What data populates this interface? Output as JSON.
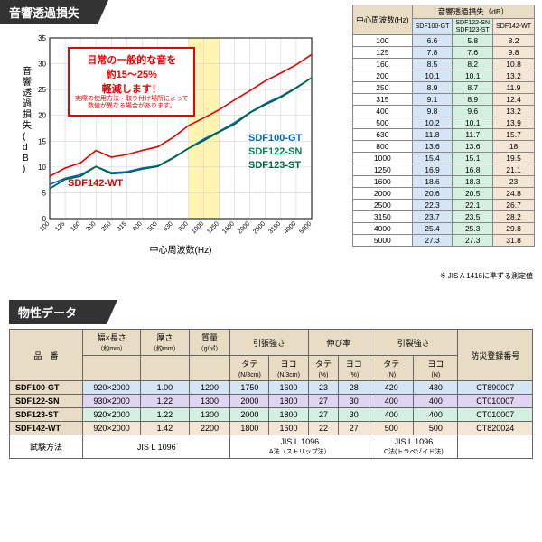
{
  "section1": {
    "title": "音響透過損失"
  },
  "callout": {
    "line1": "日常の一般的な音を",
    "line2": "約15～25%",
    "line3": "軽減します！",
    "line4": "実際の使用方法・取り付け場所によって",
    "line5": "数値が異なる場合があります。"
  },
  "chart": {
    "ylabel": "音響透過損失(dB)",
    "xlabel": "中心周波数(Hz)",
    "ylim": [
      0,
      35
    ],
    "yticks": [
      0,
      5,
      10,
      15,
      20,
      25,
      30,
      35
    ],
    "xticks": [
      "100",
      "125",
      "160",
      "200",
      "250",
      "315",
      "400",
      "500",
      "630",
      "800",
      "1000",
      "1250",
      "1600",
      "2000",
      "2500",
      "3150",
      "4000",
      "5000"
    ],
    "highlight_band": [
      9,
      11
    ],
    "series": [
      {
        "name": "SDF142-WT",
        "color": "#e00000",
        "label_pos": [
          60,
          165
        ],
        "y": [
          8.2,
          9.8,
          10.8,
          13.2,
          11.9,
          12.4,
          13.2,
          13.9,
          15.7,
          18,
          19.5,
          21.1,
          23,
          24.8,
          26.7,
          28.2,
          29.8,
          31.8
        ]
      },
      {
        "name": "SDF100-GT",
        "color": "#0066cc",
        "label_pos": [
          260,
          115
        ],
        "y": [
          6.6,
          7.8,
          8.5,
          10.1,
          8.9,
          9.1,
          9.8,
          10.2,
          11.8,
          13.6,
          15.4,
          16.9,
          18.6,
          20.6,
          22.3,
          23.7,
          25.4,
          27.3
        ]
      },
      {
        "name": "SDF122-SN",
        "color": "#008855",
        "label_pos": [
          260,
          130
        ],
        "y": [
          5.8,
          7.6,
          8.2,
          10.1,
          8.7,
          8.9,
          9.6,
          10.1,
          11.7,
          13.6,
          15.1,
          16.8,
          18.3,
          20.5,
          22.1,
          23.5,
          25.3,
          27.3
        ]
      },
      {
        "name": "SDF123-ST",
        "color": "#006644",
        "label_pos": [
          260,
          145
        ],
        "y": [
          5.8,
          7.6,
          8.2,
          10.1,
          8.7,
          8.9,
          9.6,
          10.1,
          11.7,
          13.6,
          15.1,
          16.8,
          18.3,
          20.5,
          22.1,
          23.5,
          25.3,
          27.3
        ]
      }
    ]
  },
  "tl_table": {
    "header_main": "音響透過損失（dB）",
    "header_freq": "中心周波数(Hz)",
    "cols": [
      "SDF100-GT",
      "SDF122-SN SDF123-ST",
      "SDF142-WT"
    ],
    "col_bg": [
      "#d5e5f5",
      "#d5f0e0",
      "#f5e5d5"
    ],
    "rows": [
      [
        "100",
        "6.6",
        "5.8",
        "8.2"
      ],
      [
        "125",
        "7.8",
        "7.6",
        "9.8"
      ],
      [
        "160",
        "8.5",
        "8.2",
        "10.8"
      ],
      [
        "200",
        "10.1",
        "10.1",
        "13.2"
      ],
      [
        "250",
        "8.9",
        "8.7",
        "11.9"
      ],
      [
        "315",
        "9.1",
        "8.9",
        "12.4"
      ],
      [
        "400",
        "9.8",
        "9.6",
        "13.2"
      ],
      [
        "500",
        "10.2",
        "10.1",
        "13.9"
      ],
      [
        "630",
        "11.8",
        "11.7",
        "15.7"
      ],
      [
        "800",
        "13.6",
        "13.6",
        "18"
      ],
      [
        "1000",
        "15.4",
        "15.1",
        "19.5"
      ],
      [
        "1250",
        "16.9",
        "16.8",
        "21.1"
      ],
      [
        "1600",
        "18.6",
        "18.3",
        "23"
      ],
      [
        "2000",
        "20.6",
        "20.5",
        "24.8"
      ],
      [
        "2500",
        "22.3",
        "22.1",
        "26.7"
      ],
      [
        "3150",
        "23.7",
        "23.5",
        "28.2"
      ],
      [
        "4000",
        "25.4",
        "25.3",
        "29.8"
      ],
      [
        "5000",
        "27.3",
        "27.3",
        "31.8"
      ]
    ],
    "note": "※ JIS A 1416に準ずる測定値"
  },
  "section2": {
    "title": "物性データ"
  },
  "props": {
    "headers": {
      "product": "品　番",
      "size": "幅×長さ",
      "thickness": "厚さ",
      "mass": "質量",
      "tensile": "引張強さ",
      "elongation": "伸び率",
      "tear": "引裂強さ",
      "reg": "防災登録番号",
      "size_u": "（約mm）",
      "th_u": "（約mm）",
      "mass_u": "（g/㎡）",
      "tate": "タテ",
      "yoko": "ヨコ",
      "n3": "(N/3cm)",
      "pct": "(%)",
      "n": "(N)",
      "test": "試験方法",
      "jis1": "JIS L 1096",
      "jis2": "JIS L 1096",
      "jis2s": "A法（ストリップ法）",
      "jis3": "JIS L 1096",
      "jis3s": "C法(トラペゾイド法)"
    },
    "rows": [
      {
        "bg": "#d5e5f5",
        "v": [
          "SDF100-GT",
          "920×2000",
          "1.00",
          "1200",
          "1750",
          "1600",
          "23",
          "28",
          "420",
          "430",
          "CT890007"
        ]
      },
      {
        "bg": "#e0d5f0",
        "v": [
          "SDF122-SN",
          "930×2000",
          "1.22",
          "1300",
          "2000",
          "1800",
          "27",
          "30",
          "400",
          "400",
          "CT010007"
        ]
      },
      {
        "bg": "#d5f0e0",
        "v": [
          "SDF123-ST",
          "920×2000",
          "1.22",
          "1300",
          "2000",
          "1800",
          "27",
          "30",
          "400",
          "400",
          "CT010007"
        ]
      },
      {
        "bg": "#f5e5d5",
        "v": [
          "SDF142-WT",
          "920×2000",
          "1.42",
          "2200",
          "1800",
          "1600",
          "22",
          "27",
          "500",
          "500",
          "CT820024"
        ]
      }
    ]
  }
}
